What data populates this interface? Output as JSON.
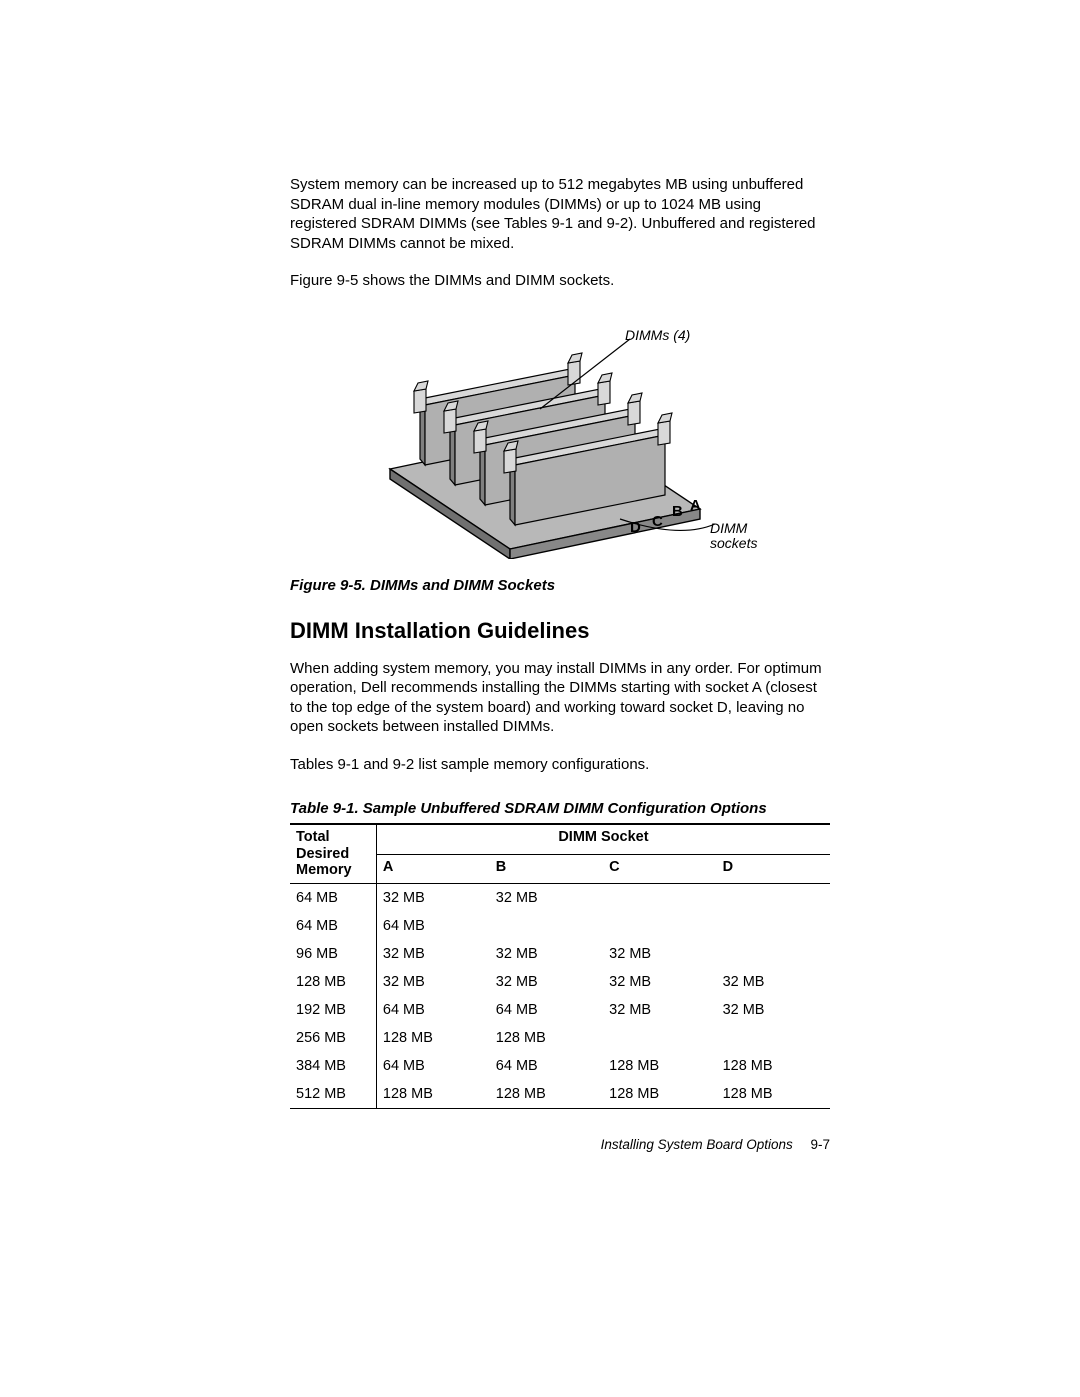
{
  "intro_para": "System memory can be increased up to 512 megabytes MB using unbuffered SDRAM dual in-line memory modules (DIMMs) or up to 1024 MB using registered SDRAM DIMMs (see Tables 9-1 and 9-2). Unbuffered and registered SDRAM DIMMs cannot be mixed.",
  "intro_para2": "Figure 9-5 shows the DIMMs and DIMM sockets.",
  "figure": {
    "label_dimms": "DIMMs (4)",
    "label_sockets_line1": "DIMM",
    "label_sockets_line2": "sockets",
    "letters": {
      "a": "A",
      "b": "B",
      "c": "C",
      "d": "D"
    },
    "caption": "Figure 9-5.  DIMMs and DIMM Sockets"
  },
  "section_heading": "DIMM Installation Guidelines",
  "guidelines_para": "When adding system memory, you may install DIMMs in any order. For optimum operation, Dell recommends installing the DIMMs starting with socket A (closest to the top edge of the system board) and working toward socket D, leaving no open sockets between installed DIMMs.",
  "guidelines_para2": "Tables 9-1 and 9-2 list sample memory configurations.",
  "table": {
    "caption": "Table 9-1.  Sample Unbuffered SDRAM DIMM Configuration Options",
    "head_total_l1": "Total",
    "head_total_l2": "Desired",
    "head_total_l3": "Memory",
    "head_socket": "DIMM Socket",
    "col_a": "A",
    "col_b": "B",
    "col_c": "C",
    "col_d": "D",
    "rows": [
      {
        "total": "64 MB",
        "a": "32 MB",
        "b": "32 MB",
        "c": "",
        "d": ""
      },
      {
        "total": "64 MB",
        "a": "64 MB",
        "b": "",
        "c": "",
        "d": ""
      },
      {
        "total": "96 MB",
        "a": "32 MB",
        "b": "32 MB",
        "c": "32 MB",
        "d": ""
      },
      {
        "total": "128 MB",
        "a": "32 MB",
        "b": "32 MB",
        "c": "32 MB",
        "d": "32 MB"
      },
      {
        "total": "192 MB",
        "a": "64 MB",
        "b": "64 MB",
        "c": "32 MB",
        "d": "32 MB"
      },
      {
        "total": "256 MB",
        "a": "128 MB",
        "b": "128 MB",
        "c": "",
        "d": ""
      },
      {
        "total": "384 MB",
        "a": "64 MB",
        "b": "64 MB",
        "c": "128 MB",
        "d": "128 MB"
      },
      {
        "total": "512 MB",
        "a": "128 MB",
        "b": "128 MB",
        "c": "128 MB",
        "d": "128 MB"
      }
    ]
  },
  "footer": {
    "text": "Installing System Board Options",
    "page": "9-7"
  },
  "colors": {
    "text": "#000000",
    "bg": "#ffffff",
    "rule": "#000000",
    "dimm_fill_light": "#d8d8d8",
    "dimm_fill_mid": "#b0b0b0",
    "dimm_fill_dark": "#808080",
    "dimm_stroke": "#000000"
  }
}
